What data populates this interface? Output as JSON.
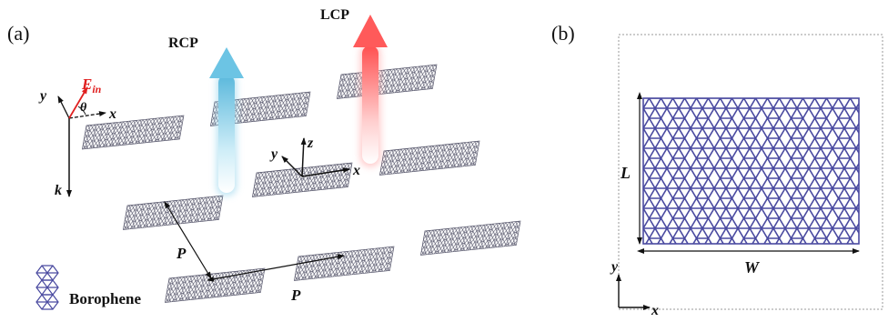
{
  "panel_a": {
    "label": "(a)",
    "beam_rcp": "RCP",
    "beam_lcp": "LCP",
    "field_e": "E",
    "field_sub": "in",
    "angle": "θ",
    "axis_x": "x",
    "axis_y": "y",
    "axis_k": "k",
    "axis_z": "z",
    "axis_x2": "x",
    "axis_y2": "y",
    "period_p1": "P",
    "period_p2": "P",
    "legend": "Borophene"
  },
  "panel_b": {
    "label": "(b)",
    "dim_l": "L",
    "dim_w": "W",
    "axis_x": "x",
    "axis_y": "y"
  },
  "colors": {
    "lattice": "#4a4aa0",
    "lcp": "#ff5a5a",
    "rcp": "#6cc0e0",
    "field": "#e02020"
  }
}
